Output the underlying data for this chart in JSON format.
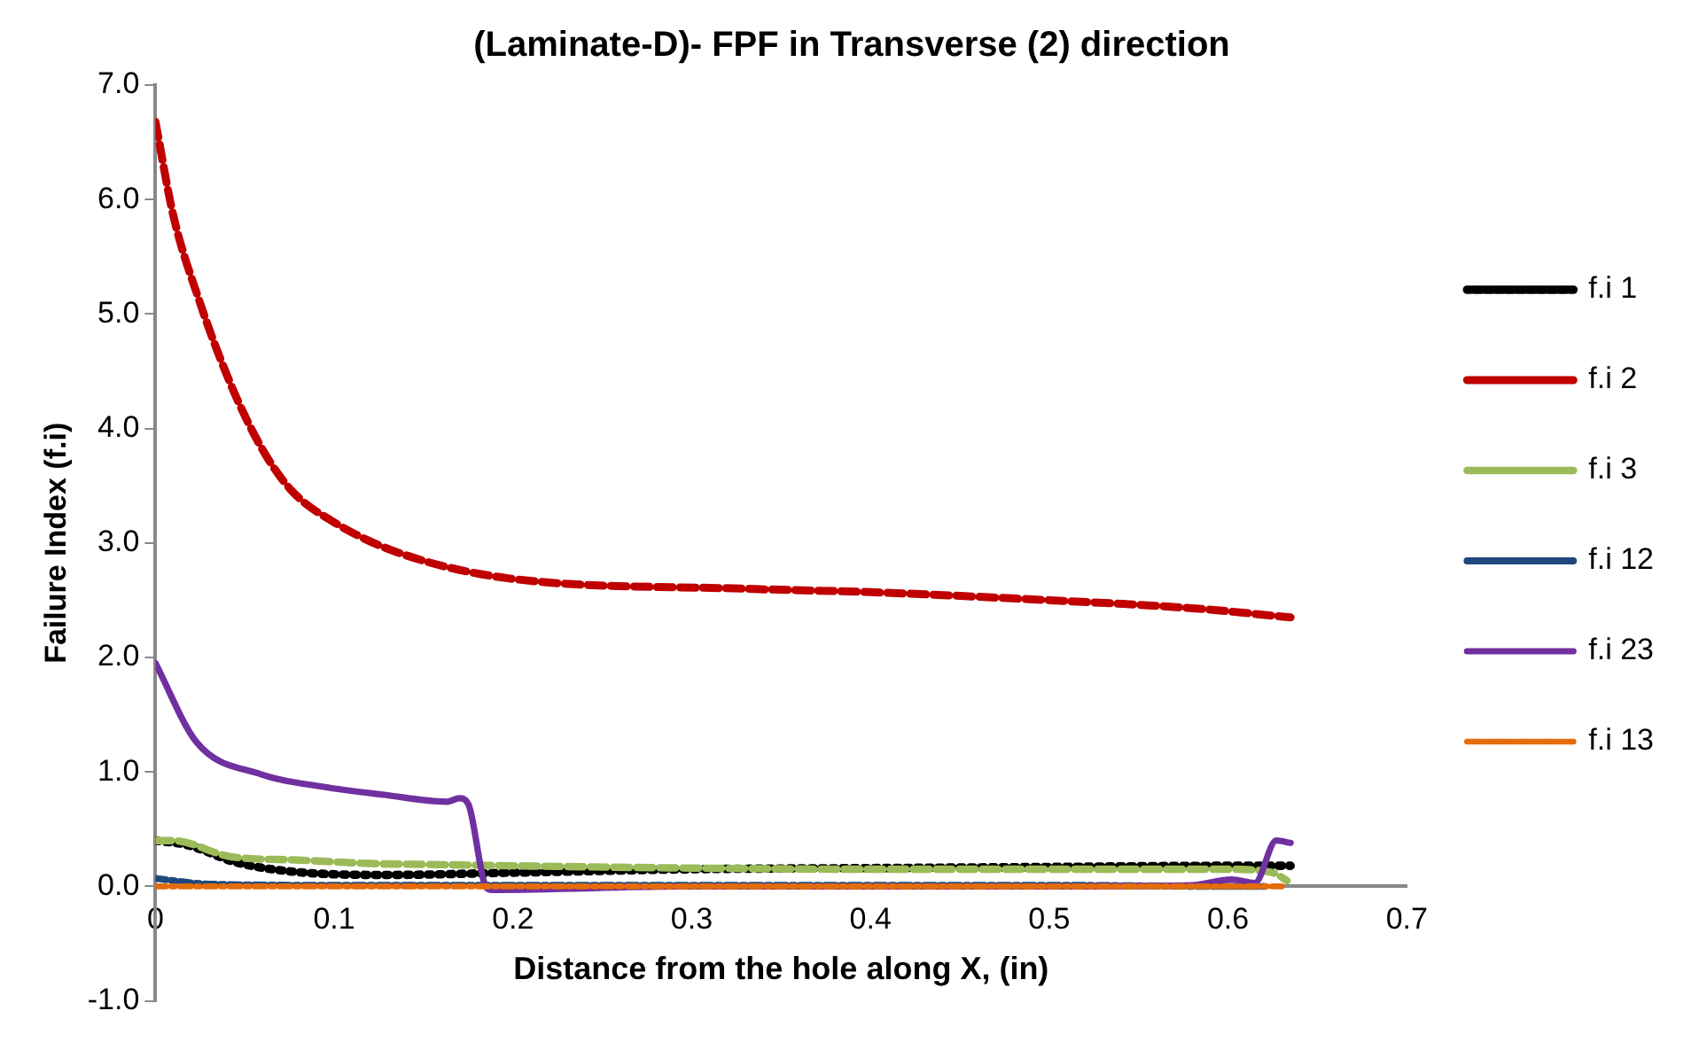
{
  "chart_data": {
    "type": "line",
    "title": "(Laminate-D)- FPF in Transverse (2) direction",
    "xlabel": "Distance from the hole along X, (in)",
    "ylabel": "Failure Index (f.i)",
    "xlim": [
      0,
      0.7
    ],
    "xticks": [
      0,
      0.1,
      0.2,
      0.3,
      0.4,
      0.5,
      0.6,
      0.7
    ],
    "ylim": [
      -1,
      7
    ],
    "yticks": [
      {
        "value": -1,
        "label": "-1.0"
      },
      {
        "value": 0,
        "label": "0.0"
      },
      {
        "value": 1,
        "label": "1.0"
      },
      {
        "value": 2,
        "label": "2.0"
      },
      {
        "value": 3,
        "label": "3.0"
      },
      {
        "value": 4,
        "label": "4.0"
      },
      {
        "value": 5,
        "label": "5.0"
      },
      {
        "value": 6,
        "label": "6.0"
      },
      {
        "value": 7,
        "label": "7.0"
      }
    ],
    "grid": false,
    "legend": "right",
    "marker": "none",
    "series": [
      {
        "name": "f.i 1",
        "color": "#000000",
        "line_style": "dotted",
        "x": [
          0,
          0.018,
          0.045,
          0.076,
          0.128,
          0.2,
          0.3,
          0.4,
          0.5,
          0.6,
          0.635
        ],
        "values": [
          0.4,
          0.36,
          0.21,
          0.13,
          0.1,
          0.12,
          0.15,
          0.16,
          0.17,
          0.18,
          0.18
        ]
      },
      {
        "name": "f.i 2",
        "color": "#c00000",
        "line_style": "dashed",
        "x": [
          0,
          0.01,
          0.024,
          0.042,
          0.059,
          0.076,
          0.1,
          0.135,
          0.198,
          0.33,
          0.4,
          0.5,
          0.58,
          0.635
        ],
        "values": [
          6.68,
          5.86,
          5.14,
          4.39,
          3.84,
          3.46,
          3.18,
          2.92,
          2.69,
          2.6,
          2.57,
          2.5,
          2.43,
          2.35
        ]
      },
      {
        "name": "f.i 3",
        "color": "#9bbb59",
        "line_style": "dashed",
        "x": [
          0,
          0.01,
          0.042,
          0.08,
          0.12,
          0.16,
          0.2,
          0.3,
          0.4,
          0.5,
          0.6,
          0.625,
          0.633
        ],
        "values": [
          0.4,
          0.4,
          0.26,
          0.23,
          0.2,
          0.19,
          0.18,
          0.16,
          0.15,
          0.15,
          0.15,
          0.12,
          0.05
        ]
      },
      {
        "name": "f.i 12",
        "color": "#1f497d",
        "line_style": "dashdot",
        "x": [
          0,
          0.03,
          0.1,
          0.3,
          0.5,
          0.6,
          0.62
        ],
        "values": [
          0.07,
          0.02,
          0.01,
          0.01,
          0.01,
          0,
          0
        ]
      },
      {
        "name": "f.i 23",
        "color": "#7030a0",
        "line_style": "solid",
        "x": [
          0,
          0.023,
          0.059,
          0.094,
          0.128,
          0.163,
          0.17,
          0.175,
          0.184,
          0.188,
          0.3,
          0.5,
          0.58,
          0.602,
          0.615,
          0.627,
          0.635
        ],
        "values": [
          1.95,
          1.26,
          0.98,
          0.87,
          0.8,
          0.74,
          0.77,
          0.72,
          0.03,
          -0.03,
          0,
          0,
          0.01,
          0.06,
          0.03,
          0.4,
          0.38
        ]
      },
      {
        "name": "f.i 13",
        "color": "#e46c0a",
        "line_style": "dashdot",
        "x": [
          0,
          0.2,
          0.4,
          0.6,
          0.63
        ],
        "values": [
          0,
          0,
          0,
          0,
          0
        ]
      }
    ]
  }
}
